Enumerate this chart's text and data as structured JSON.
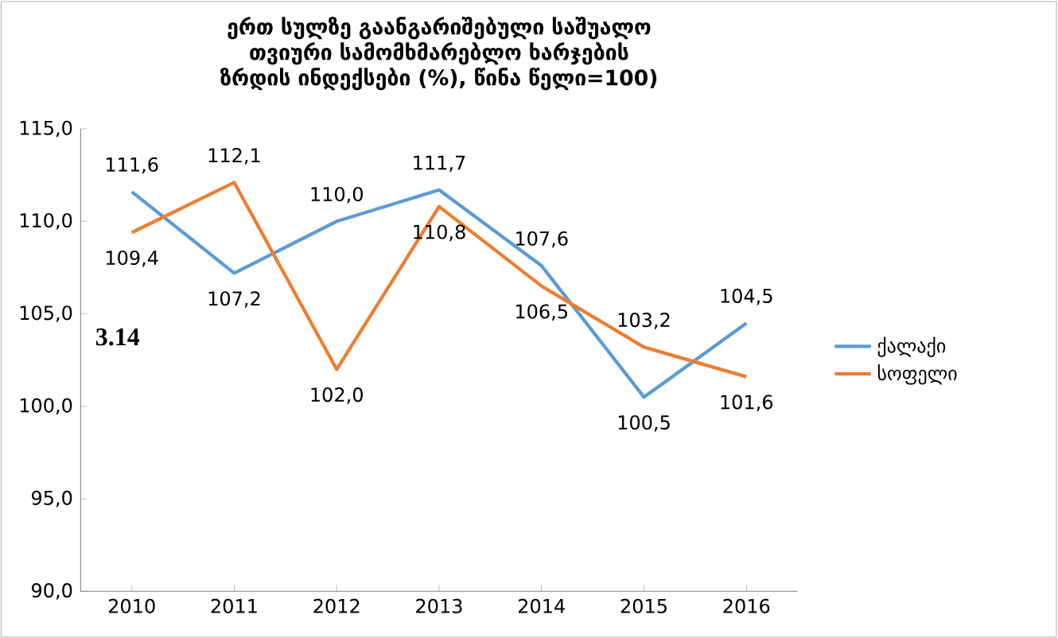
{
  "chart_data": {
    "type": "line",
    "title": "ერთ სულზე გაანგარიშებული საშუალო თვიური სამომხმარებლო ხარჯების ზრდის ინდექსები (%), წინა წელი=100)",
    "categories": [
      "2010",
      "2011",
      "2012",
      "2013",
      "2014",
      "2015",
      "2016"
    ],
    "series": [
      {
        "name": "ქალაქი",
        "color": "#5b9bd5",
        "values": [
          111.6,
          107.2,
          110.0,
          111.7,
          107.6,
          100.5,
          104.5
        ],
        "value_labels": [
          "111,6",
          "107,2",
          "110,0",
          "111,7",
          "107,6",
          "100,5",
          "104,5"
        ]
      },
      {
        "name": "სოფელი",
        "color": "#ed7d31",
        "values": [
          109.4,
          112.1,
          102.0,
          110.8,
          106.5,
          103.2,
          101.6
        ],
        "value_labels": [
          "109,4",
          "112,1",
          "102,0",
          "110,8",
          "106,5",
          "103,2",
          "101,6"
        ]
      }
    ],
    "ylim": [
      90,
      115
    ],
    "yticks": [
      {
        "value": 90,
        "label": "90,0"
      },
      {
        "value": 95,
        "label": "95,0"
      },
      {
        "value": 100,
        "label": "100,0"
      },
      {
        "value": 105,
        "label": "105,0"
      },
      {
        "value": 110,
        "label": "110,0"
      },
      {
        "value": 115,
        "label": "115,0"
      }
    ],
    "grid": false,
    "legend": "right",
    "marker": "none",
    "line_style": "solid",
    "annotations": [
      "3.14"
    ]
  }
}
